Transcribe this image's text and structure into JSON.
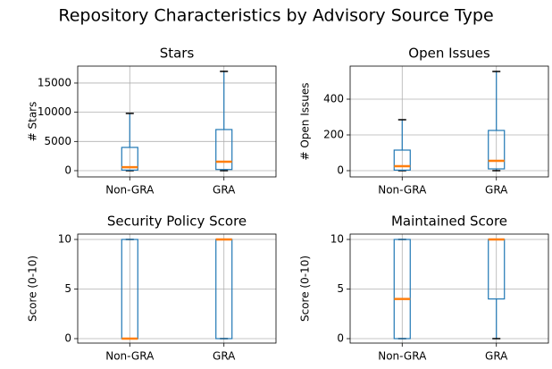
{
  "title": "Repository Characteristics by Advisory Source Type",
  "chart_data": [
    {
      "type": "box",
      "title": "Stars",
      "ylabel": "# Stars",
      "categories": [
        "Non-GRA",
        "GRA"
      ],
      "boxes": [
        {
          "whislo": 0,
          "q1": 100,
          "med": 600,
          "q3": 3980,
          "whishi": 9800
        },
        {
          "whislo": 0,
          "q1": 200,
          "med": 1530,
          "q3": 7040,
          "whishi": 17000
        }
      ],
      "ylim": [
        -1070,
        17900
      ],
      "yticks": [
        0,
        5000,
        10000,
        15000
      ],
      "grid": true,
      "box_color": "#1f77b4",
      "median_color": "#ff7f0e"
    },
    {
      "type": "box",
      "title": "Open Issues",
      "ylabel": "# Open Issues",
      "categories": [
        "Non-GRA",
        "GRA"
      ],
      "boxes": [
        {
          "whislo": 0,
          "q1": 3,
          "med": 25,
          "q3": 115,
          "whishi": 285
        },
        {
          "whislo": 0,
          "q1": 10,
          "med": 55,
          "q3": 225,
          "whishi": 555
        }
      ],
      "ylim": [
        -35,
        585
      ],
      "yticks": [
        0,
        200,
        400
      ],
      "grid": true,
      "box_color": "#1f77b4",
      "median_color": "#ff7f0e"
    },
    {
      "type": "box",
      "title": "Security Policy Score",
      "ylabel": "Score (0-10)",
      "categories": [
        "Non-GRA",
        "GRA"
      ],
      "boxes": [
        {
          "whislo": 0,
          "q1": 0,
          "med": 0,
          "q3": 10,
          "whishi": 10
        },
        {
          "whislo": 0,
          "q1": 0,
          "med": 10,
          "q3": 10,
          "whishi": 10
        }
      ],
      "ylim": [
        -0.45,
        10.54
      ],
      "yticks": [
        0,
        5,
        10
      ],
      "grid": true,
      "box_color": "#1f77b4",
      "median_color": "#ff7f0e"
    },
    {
      "type": "box",
      "title": "Maintained Score",
      "ylabel": "Score (0-10)",
      "categories": [
        "Non-GRA",
        "GRA"
      ],
      "boxes": [
        {
          "whislo": 0,
          "q1": 0,
          "med": 4,
          "q3": 10,
          "whishi": 10
        },
        {
          "whislo": 0,
          "q1": 4,
          "med": 10,
          "q3": 10,
          "whishi": 10
        }
      ],
      "ylim": [
        -0.45,
        10.54
      ],
      "yticks": [
        0,
        5,
        10
      ],
      "grid": true,
      "box_color": "#1f77b4",
      "median_color": "#ff7f0e"
    }
  ]
}
